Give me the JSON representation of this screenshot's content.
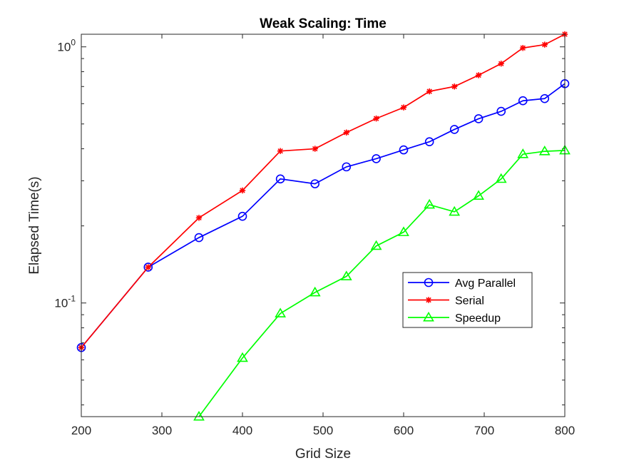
{
  "chart_data": {
    "type": "line",
    "title": "Weak Scaling: Time",
    "xlabel": "Grid Size",
    "ylabel": "Elapsed Time(s)",
    "xlim": [
      200,
      800
    ],
    "ylim": [
      0.036,
      1.12
    ],
    "yscale": "log",
    "xticks": [
      200,
      300,
      400,
      500,
      600,
      700,
      800
    ],
    "xtick_labels": [
      "200",
      "300",
      "400",
      "500",
      "600",
      "700",
      "800"
    ],
    "yticks_major": [
      {
        "value": 0.1,
        "base": "10",
        "exp": "-1"
      },
      {
        "value": 1.0,
        "base": "10",
        "exp": "0"
      }
    ],
    "grid": false,
    "legend_position": "inside-lower-right",
    "series": [
      {
        "name": "Avg Parallel",
        "color": "#0000ff",
        "marker": "circle",
        "x": [
          200,
          283,
          346,
          400,
          447,
          490,
          529,
          566,
          600,
          632,
          663,
          693,
          721,
          748,
          775,
          800
        ],
        "y": [
          0.067,
          0.138,
          0.18,
          0.218,
          0.305,
          0.292,
          0.34,
          0.366,
          0.396,
          0.426,
          0.476,
          0.524,
          0.56,
          0.616,
          0.628,
          0.718
        ]
      },
      {
        "name": "Serial",
        "color": "#ff0000",
        "marker": "star",
        "x": [
          200,
          283,
          346,
          400,
          447,
          490,
          529,
          566,
          600,
          632,
          663,
          693,
          721,
          748,
          775,
          800
        ],
        "y": [
          0.067,
          0.138,
          0.215,
          0.275,
          0.392,
          0.4,
          0.463,
          0.525,
          0.58,
          0.67,
          0.7,
          0.775,
          0.86,
          0.99,
          1.02,
          1.12
        ]
      },
      {
        "name": "Speedup",
        "color": "#00ff00",
        "marker": "triangle",
        "x": [
          346,
          400,
          447,
          490,
          529,
          566,
          600,
          632,
          663,
          693,
          721,
          748,
          775,
          800
        ],
        "y": [
          0.036,
          0.061,
          0.091,
          0.11,
          0.127,
          0.167,
          0.189,
          0.242,
          0.227,
          0.262,
          0.305,
          0.381,
          0.391,
          0.394
        ]
      }
    ]
  }
}
